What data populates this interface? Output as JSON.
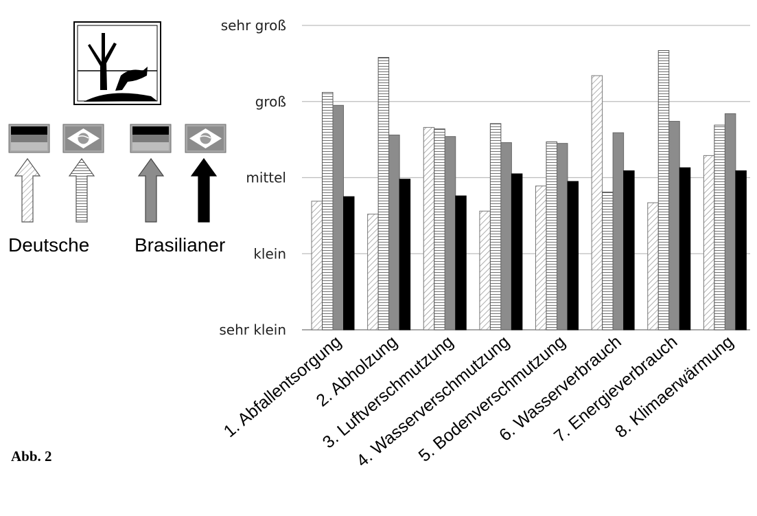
{
  "caption": "Abb. 2",
  "legend": {
    "group_labels": [
      "Deutsche",
      "Brasilianer"
    ],
    "icons": [
      "environmental-hazard-symbol-icon",
      "german-flag-icon",
      "brazilian-flag-icon",
      "german-flag-icon",
      "brazilian-flag-icon"
    ]
  },
  "colors": {
    "series_1_fill": "#ffffff",
    "series_2_fill": "#ffffff",
    "series_3_fill": "#8c8c8c",
    "series_4_fill": "#000000",
    "gridline": "#bdbdbd"
  },
  "chart_data": {
    "type": "bar",
    "categories": [
      "1. Abfallentsorgung",
      "2. Abholzung",
      "3. Luftverschmutzung",
      "4. Wasserverschmutzung",
      "5. Bodenverschmutzung",
      "6. Wasserverbrauch",
      "7. Energieverbrauch",
      "8. Klimaerwärmung"
    ],
    "y_tick_labels": [
      "sehr klein",
      "klein",
      "mittel",
      "groß",
      "sehr groß"
    ],
    "ylim": [
      1,
      5
    ],
    "grid": true,
    "series": [
      {
        "pattern": "diagonal-hatch",
        "values": [
          2.69,
          2.52,
          3.66,
          2.56,
          2.89,
          4.34,
          2.67,
          3.29
        ]
      },
      {
        "pattern": "horizontal-stripes",
        "values": [
          4.12,
          4.58,
          3.64,
          3.71,
          3.47,
          2.81,
          4.67,
          3.69
        ]
      },
      {
        "pattern": "gray",
        "values": [
          3.95,
          3.56,
          3.54,
          3.46,
          3.45,
          3.59,
          3.74,
          3.84
        ]
      },
      {
        "pattern": "black",
        "values": [
          2.75,
          2.98,
          2.76,
          3.05,
          2.95,
          3.09,
          3.13,
          3.09
        ]
      }
    ]
  }
}
